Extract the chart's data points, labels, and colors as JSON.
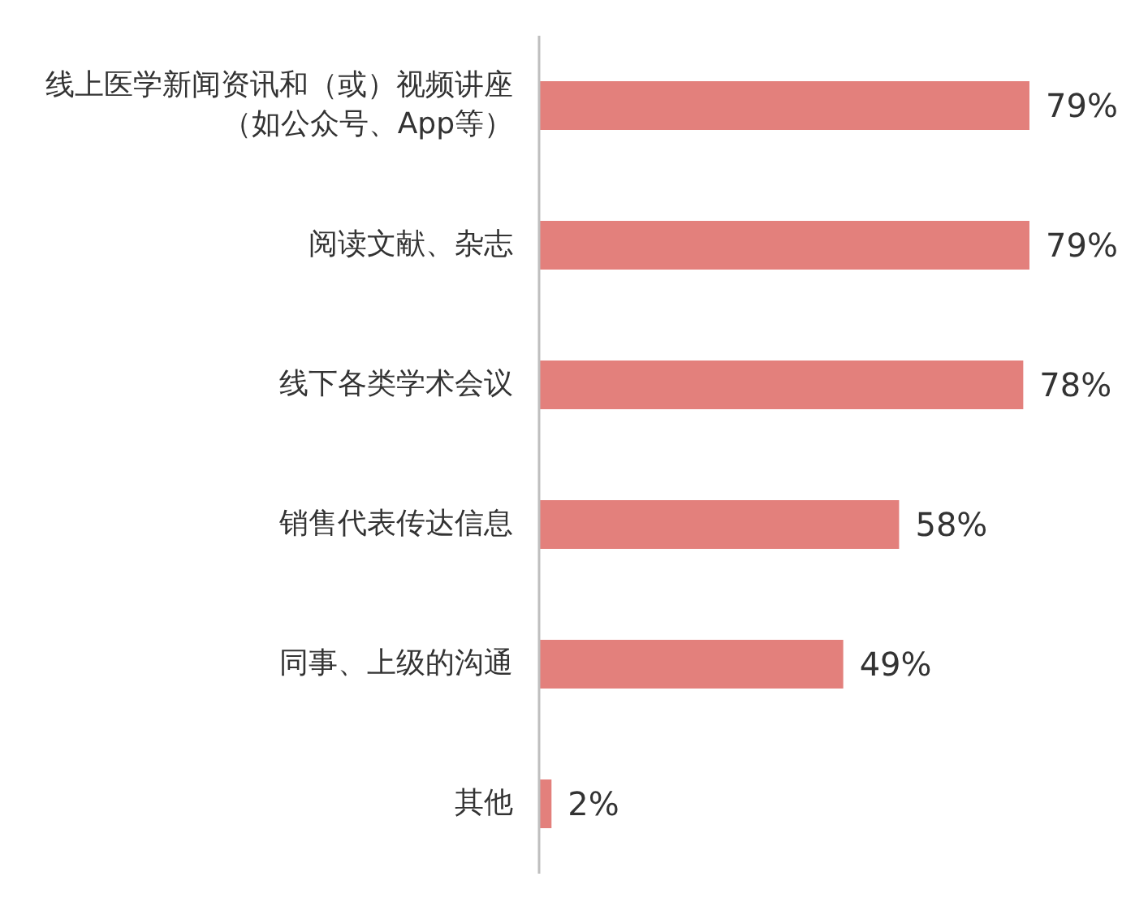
{
  "chart_data": {
    "type": "bar",
    "orientation": "horizontal",
    "categories": [
      "线上医学新闻资讯和（或）视频讲座（如公众号、App等）",
      "阅读文献、杂志",
      "线下各类学术会议",
      "销售代表传达信息",
      "同事、上级的沟通",
      "其他"
    ],
    "values": [
      79,
      79,
      78,
      58,
      49,
      2
    ],
    "value_labels": [
      "79%",
      "79%",
      "78%",
      "58%",
      "49%",
      "2%"
    ],
    "color": "#e3807c"
  }
}
